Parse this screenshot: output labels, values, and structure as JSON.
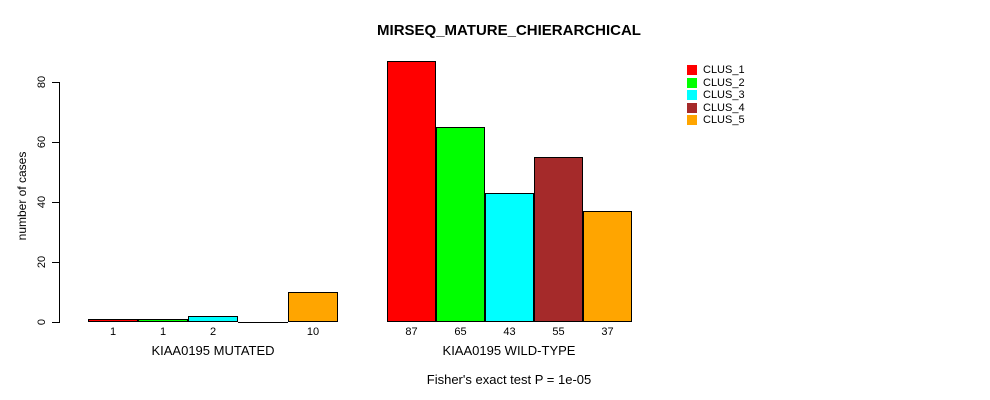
{
  "title": "MIRSEQ_MATURE_CHIERARCHICAL",
  "footer": "Fisher's exact test P = 1e-05",
  "y_axis": {
    "label": "number of cases",
    "ticks": [
      0,
      20,
      40,
      60,
      80
    ]
  },
  "legend": {
    "items": [
      {
        "label": "CLUS_1",
        "color": "#FF0000"
      },
      {
        "label": "CLUS_2",
        "color": "#00FF00"
      },
      {
        "label": "CLUS_3",
        "color": "#00FFFF"
      },
      {
        "label": "CLUS_4",
        "color": "#A52A2A"
      },
      {
        "label": "CLUS_5",
        "color": "#FFA500"
      }
    ]
  },
  "chart_data": {
    "type": "bar",
    "title": "MIRSEQ_MATURE_CHIERARCHICAL",
    "xlabel": "",
    "ylabel": "number of cases",
    "ylim": [
      0,
      88
    ],
    "yticks": [
      0,
      20,
      40,
      60,
      80
    ],
    "grid": false,
    "legend_position": "top-right",
    "categories": [
      "KIAA0195 MUTATED",
      "KIAA0195 WILD-TYPE"
    ],
    "series": [
      {
        "name": "CLUS_1",
        "color": "#FF0000",
        "values": [
          1,
          87
        ]
      },
      {
        "name": "CLUS_2",
        "color": "#00FF00",
        "values": [
          1,
          65
        ]
      },
      {
        "name": "CLUS_3",
        "color": "#00FFFF",
        "values": [
          2,
          43
        ]
      },
      {
        "name": "CLUS_4",
        "color": "#A52A2A",
        "values": [
          0,
          55
        ]
      },
      {
        "name": "CLUS_5",
        "color": "#FFA500",
        "values": [
          10,
          37
        ]
      }
    ],
    "bar_value_labels": [
      [
        "1",
        "1",
        "2",
        "",
        "10"
      ],
      [
        "87",
        "65",
        "43",
        "55",
        "37"
      ]
    ],
    "annotation": "Fisher's exact test P = 1e-05"
  }
}
